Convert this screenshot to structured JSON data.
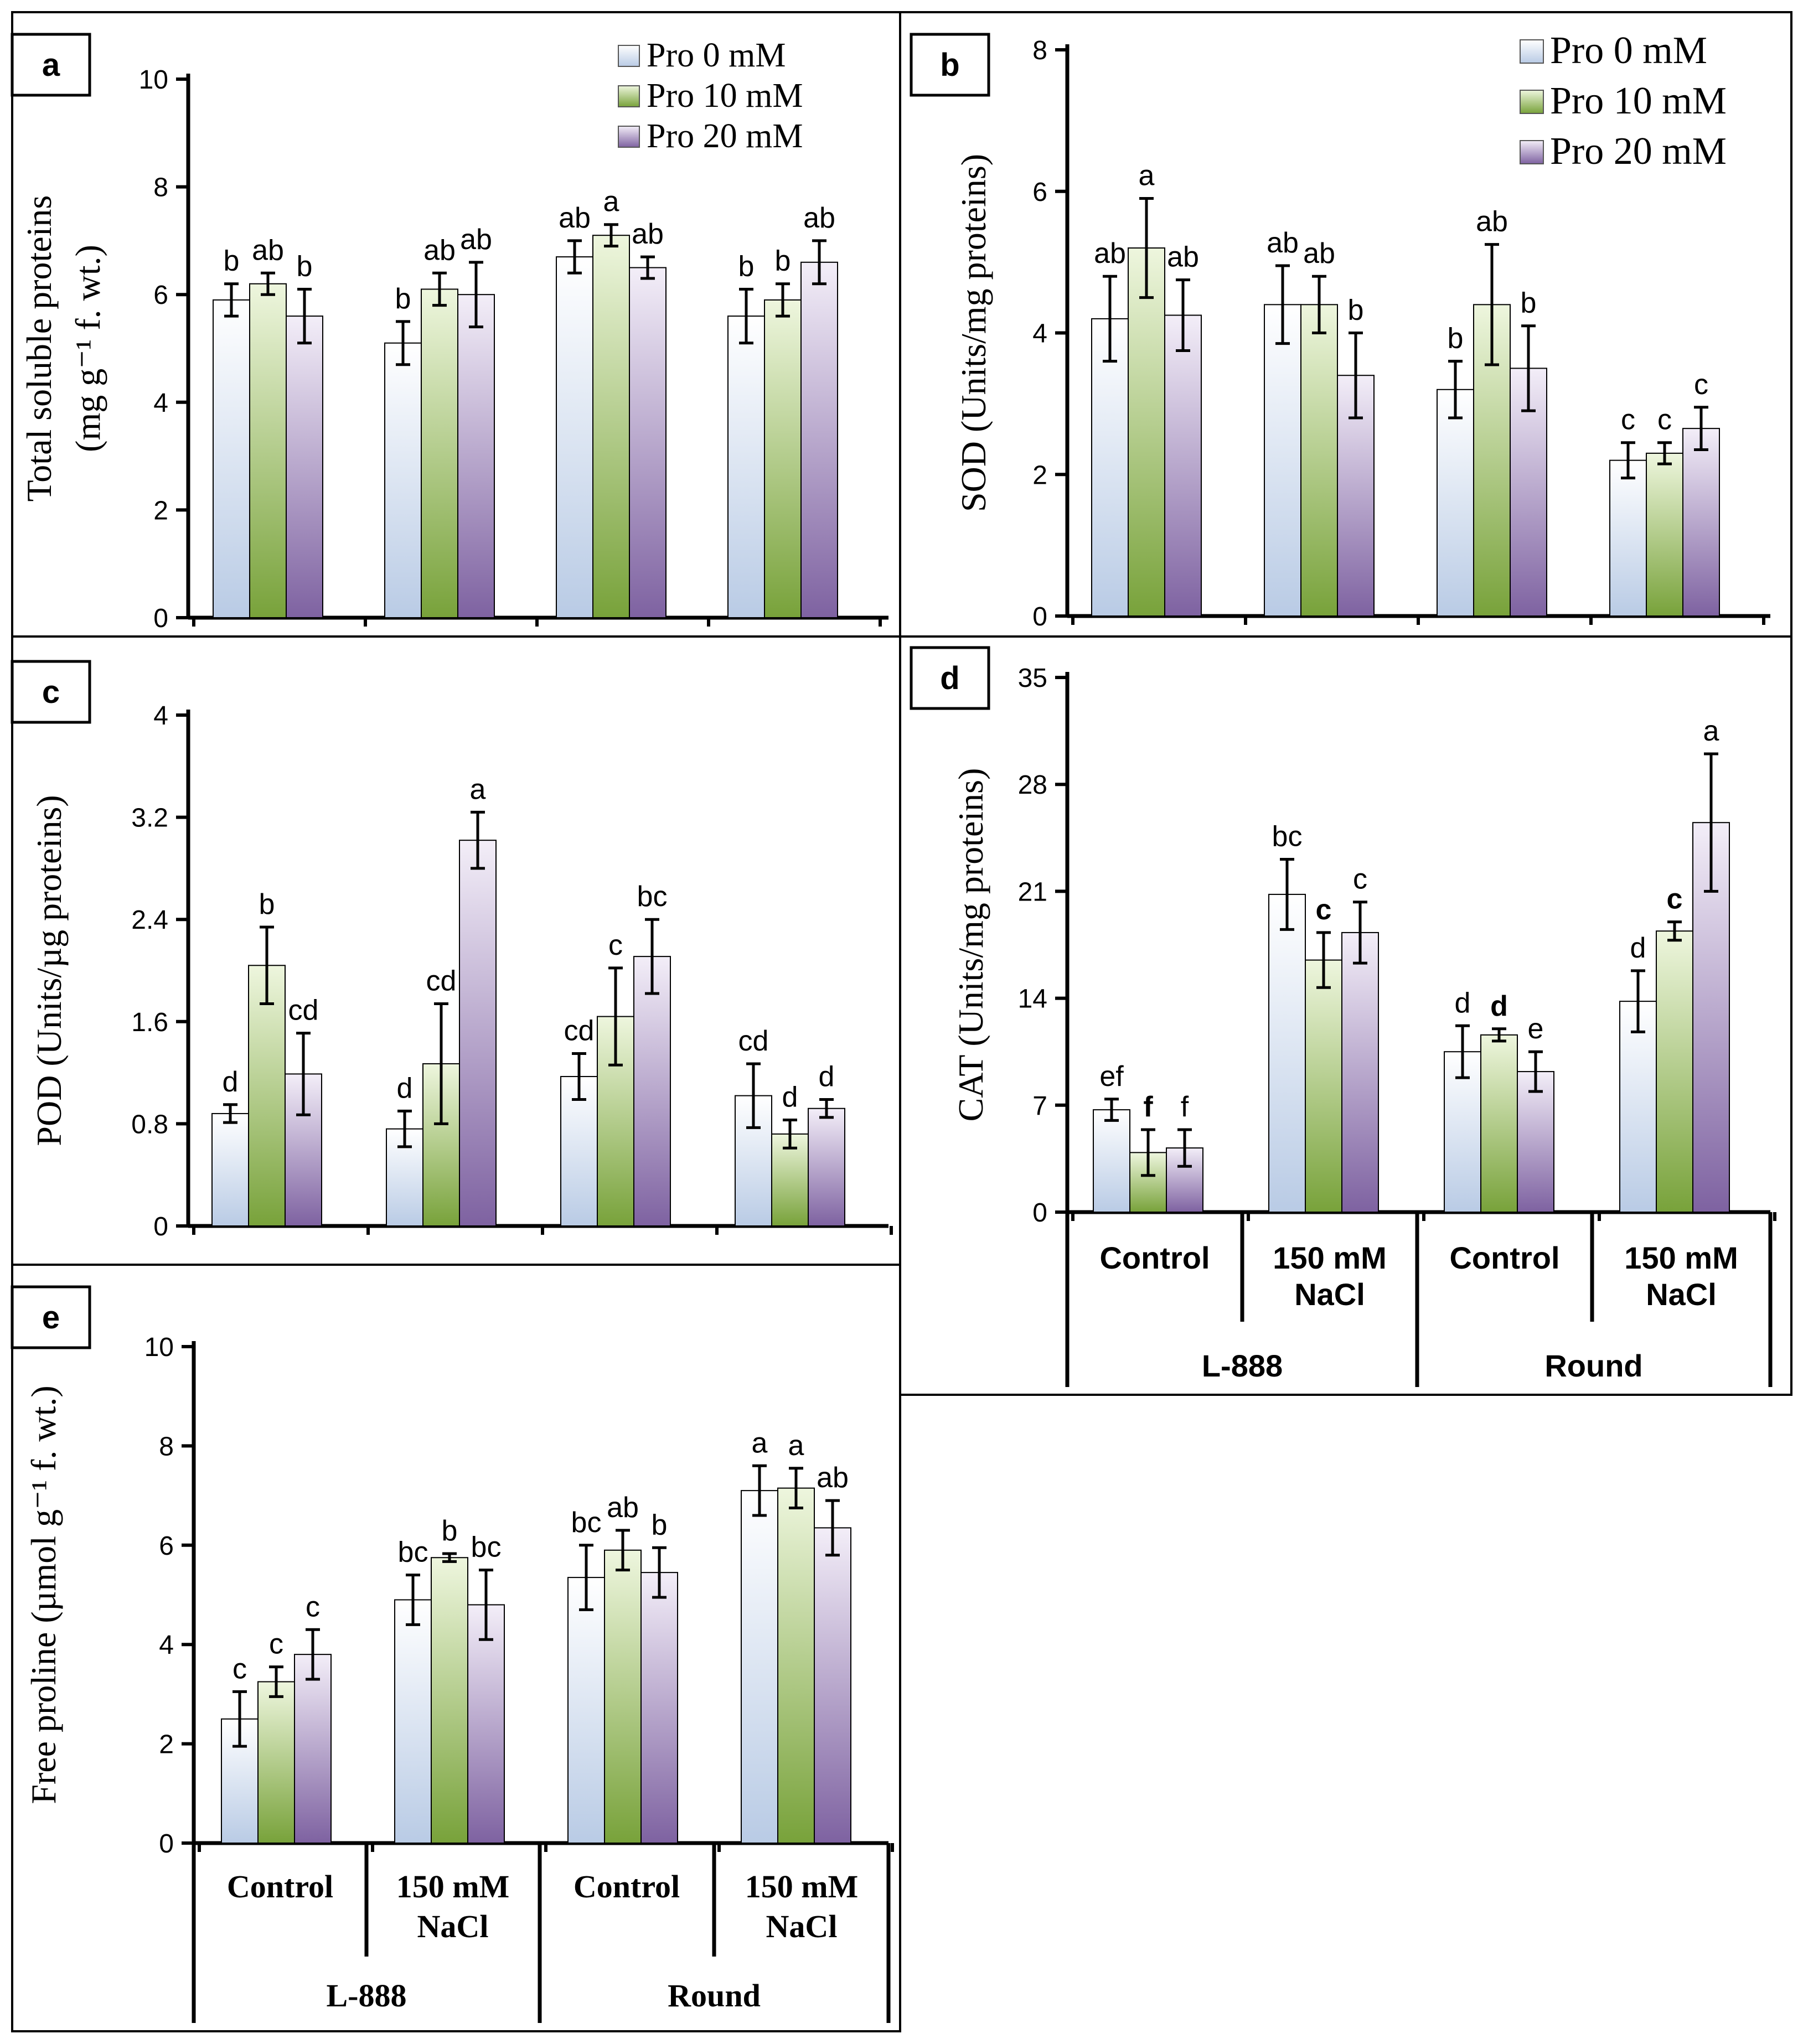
{
  "legend": [
    {
      "label": "Pro 0 mM",
      "gradient": "g0"
    },
    {
      "label": "Pro 10 mM",
      "gradient": "g1"
    },
    {
      "label": "Pro 20 mM",
      "gradient": "g2"
    }
  ],
  "categories": [
    {
      "label": "Control",
      "line2": ""
    },
    {
      "label": "150 mM",
      "line2": "NaCl"
    },
    {
      "label": "Control",
      "line2": ""
    },
    {
      "label": "150 mM",
      "line2": "NaCl"
    }
  ],
  "groups": [
    "L-888",
    "Round"
  ],
  "colors": {
    "pro0_light": "#f2f5fb",
    "pro0_dark": "#b9cbe5",
    "pro10_light": "#eef6de",
    "pro10_dark": "#78a23a",
    "pro20_light": "#ece6f3",
    "pro20_dark": "#8064a2"
  },
  "chart_data": [
    {
      "id": "a",
      "type": "bar",
      "panel_label": "a",
      "ylabel_line1": "Total soluble proteins",
      "ylabel_line2": "(mg g⁻¹ f. wt.)",
      "ylim": [
        0,
        10
      ],
      "yticks": [
        "0",
        "2",
        "4",
        "6",
        "8",
        "10"
      ],
      "ytick_values": [
        0,
        2,
        4,
        6,
        8,
        10
      ],
      "series": [
        {
          "name": "Pro 0 mM",
          "values": [
            5.9,
            5.1,
            6.7,
            5.6
          ],
          "errors": [
            0.3,
            0.4,
            0.3,
            0.5
          ],
          "letters": [
            "b",
            "b",
            "ab",
            "b"
          ]
        },
        {
          "name": "Pro 10 mM",
          "values": [
            6.2,
            6.1,
            7.1,
            5.9
          ],
          "errors": [
            0.2,
            0.3,
            0.2,
            0.3
          ],
          "letters": [
            "ab",
            "ab",
            "a",
            "b"
          ]
        },
        {
          "name": "Pro 20 mM",
          "values": [
            5.6,
            6.0,
            6.5,
            6.6
          ],
          "errors": [
            0.5,
            0.6,
            0.2,
            0.4
          ],
          "letters": [
            "b",
            "ab",
            "ab",
            "ab"
          ]
        }
      ]
    },
    {
      "id": "b",
      "type": "bar",
      "panel_label": "b",
      "ylabel_line1": "SOD (Units/mg proteins)",
      "ylabel_line2": "",
      "ylim": [
        0,
        8
      ],
      "yticks": [
        "0",
        "2",
        "4",
        "6",
        "8"
      ],
      "ytick_values": [
        0,
        2,
        4,
        6,
        8
      ],
      "series": [
        {
          "name": "Pro 0 mM",
          "values": [
            4.2,
            4.4,
            3.2,
            2.2
          ],
          "errors": [
            0.6,
            0.55,
            0.4,
            0.25
          ],
          "letters": [
            "ab",
            "ab",
            "b",
            "c"
          ]
        },
        {
          "name": "Pro 10 mM",
          "values": [
            5.2,
            4.4,
            4.4,
            2.3
          ],
          "errors": [
            0.7,
            0.4,
            0.85,
            0.15
          ],
          "letters": [
            "a",
            "ab",
            "ab",
            "c"
          ]
        },
        {
          "name": "Pro 20 mM",
          "values": [
            4.25,
            3.4,
            3.5,
            2.65
          ],
          "errors": [
            0.5,
            0.6,
            0.6,
            0.3
          ],
          "letters": [
            "ab",
            "b",
            "b",
            "c"
          ]
        }
      ]
    },
    {
      "id": "c",
      "type": "bar",
      "panel_label": "c",
      "ylabel_line1": "POD (Units/µg proteins)",
      "ylabel_line2": "",
      "ylim": [
        0,
        4
      ],
      "yticks": [
        "0",
        "0.8",
        "1.6",
        "2.4",
        "3.2",
        "4"
      ],
      "ytick_values": [
        0,
        0.8,
        1.6,
        2.4,
        3.2,
        4
      ],
      "series": [
        {
          "name": "Pro 0 mM",
          "values": [
            0.88,
            0.76,
            1.17,
            1.02
          ],
          "errors": [
            0.07,
            0.14,
            0.18,
            0.25
          ],
          "letters": [
            "d",
            "d",
            "cd",
            "cd"
          ]
        },
        {
          "name": "Pro 10 mM",
          "values": [
            2.04,
            1.27,
            1.64,
            0.72
          ],
          "errors": [
            0.3,
            0.47,
            0.38,
            0.11
          ],
          "letters": [
            "b",
            "cd",
            "c",
            "d"
          ]
        },
        {
          "name": "Pro 20 mM",
          "values": [
            1.19,
            3.02,
            2.11,
            0.92
          ],
          "errors": [
            0.32,
            0.22,
            0.29,
            0.07
          ],
          "letters": [
            "cd",
            "a",
            "bc",
            "d"
          ]
        }
      ]
    },
    {
      "id": "d",
      "type": "bar",
      "panel_label": "d",
      "ylabel_line1": "CAT (Units/mg proteins)",
      "ylabel_line2": "",
      "ylim": [
        0,
        35
      ],
      "yticks": [
        "0",
        "7",
        "14",
        "21",
        "28",
        "35"
      ],
      "ytick_values": [
        0,
        7,
        14,
        21,
        28,
        35
      ],
      "series": [
        {
          "name": "Pro 0 mM",
          "values": [
            6.7,
            20.8,
            10.5,
            13.8
          ],
          "errors": [
            0.7,
            2.3,
            1.7,
            2.0
          ],
          "letters": [
            "ef",
            "bc",
            "d",
            "d"
          ],
          "bold": [
            false,
            false,
            false,
            false
          ]
        },
        {
          "name": "Pro 10 mM",
          "values": [
            3.9,
            16.5,
            11.6,
            18.4
          ],
          "errors": [
            1.5,
            1.8,
            0.4,
            0.6
          ],
          "letters": [
            "f",
            "c",
            "d",
            "c"
          ],
          "bold": [
            true,
            true,
            true,
            true
          ]
        },
        {
          "name": "Pro 20 mM",
          "values": [
            4.2,
            18.3,
            9.2,
            25.5
          ],
          "errors": [
            1.2,
            2.0,
            1.3,
            4.5
          ],
          "letters": [
            "f",
            "c",
            "e",
            "a"
          ],
          "bold": [
            false,
            false,
            false,
            false
          ]
        }
      ]
    },
    {
      "id": "e",
      "type": "bar",
      "panel_label": "e",
      "ylabel_line1": "Free proline (µmol g⁻¹ f. wt.)",
      "ylabel_line2": "",
      "ylim": [
        0,
        10
      ],
      "yticks": [
        "0",
        "2",
        "4",
        "6",
        "8",
        "10"
      ],
      "ytick_values": [
        0,
        2,
        4,
        6,
        8,
        10
      ],
      "series": [
        {
          "name": "Pro 0 mM",
          "values": [
            2.5,
            4.9,
            5.35,
            7.1
          ],
          "errors": [
            0.55,
            0.5,
            0.65,
            0.5
          ],
          "letters": [
            "c",
            "bc",
            "bc",
            "a"
          ]
        },
        {
          "name": "Pro 10 mM",
          "values": [
            3.25,
            5.75,
            5.9,
            7.15
          ],
          "errors": [
            0.3,
            0.08,
            0.4,
            0.4
          ],
          "letters": [
            "c",
            "b",
            "ab",
            "a"
          ]
        },
        {
          "name": "Pro 20 mM",
          "values": [
            3.8,
            4.8,
            5.45,
            6.35
          ],
          "errors": [
            0.5,
            0.7,
            0.5,
            0.55
          ],
          "letters": [
            "c",
            "bc",
            "b",
            "ab"
          ]
        }
      ]
    }
  ]
}
